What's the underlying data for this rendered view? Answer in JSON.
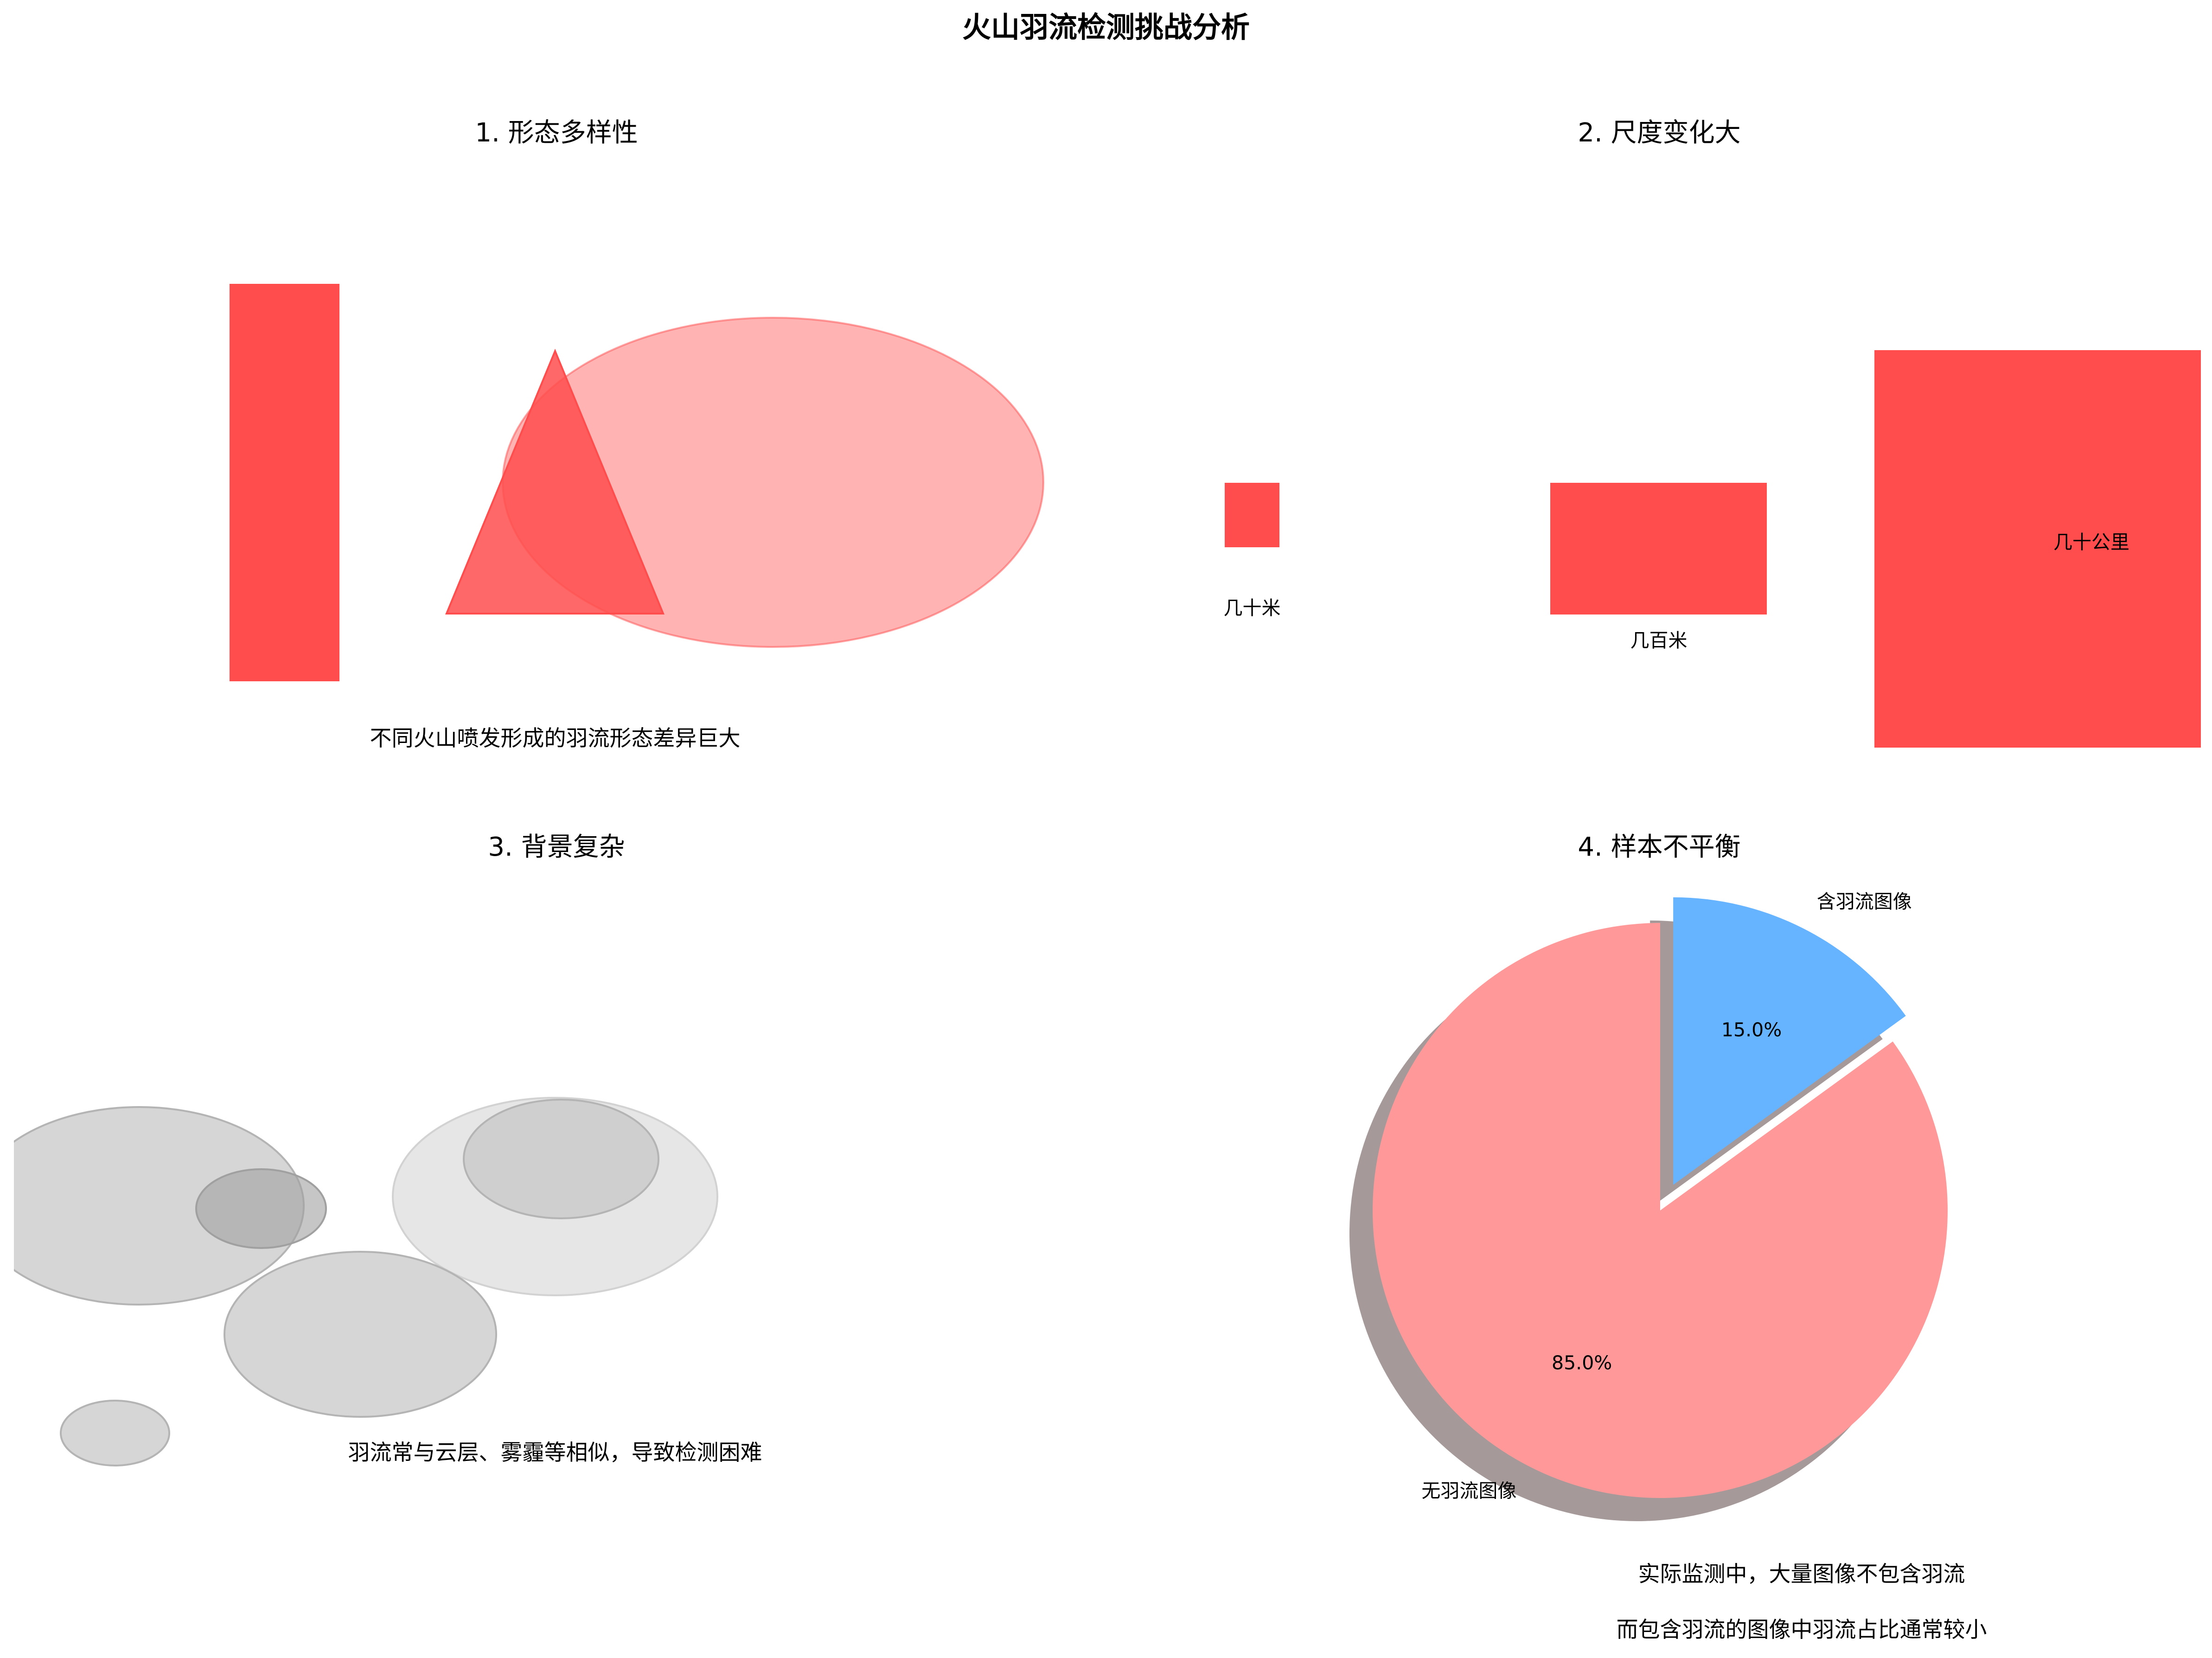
{
  "figure_title": "火山羽流检测挑战分析",
  "panels": [
    {
      "title": "1. 形态多样性",
      "caption": "不同火山喷发形成的羽流形态差异巨大",
      "shapes": [
        "vertical-rectangle",
        "triangle",
        "ellipse"
      ]
    },
    {
      "title": "2. 尺度变化大",
      "labels": {
        "small": "几十米",
        "medium": "几百米",
        "large": "几十公里"
      }
    },
    {
      "title": "3. 背景复杂",
      "caption": "羽流常与云层、雾霾等相似，导致检测困难"
    },
    {
      "title": "4. 样本不平衡",
      "captions": [
        "实际监测中，大量图像不包含羽流",
        "而包含羽流的图像中羽流占比通常较小"
      ]
    }
  ],
  "colors": {
    "plume_red": "#ff4d4d",
    "plume_light": "#ff9999",
    "plume_blue": "#66b3ff",
    "cloud_gray": "#c8c8c8",
    "shadow": "#a59999"
  },
  "chart_data": {
    "type": "pie",
    "slices": [
      {
        "label": "含羽流图像",
        "value": 15.0,
        "pct_label": "15.0%",
        "color": "#66b3ff",
        "explode": true
      },
      {
        "label": "无羽流图像",
        "value": 85.0,
        "pct_label": "85.0%",
        "color": "#ff9999",
        "explode": false
      }
    ],
    "shadow": true,
    "start_angle": "90"
  }
}
